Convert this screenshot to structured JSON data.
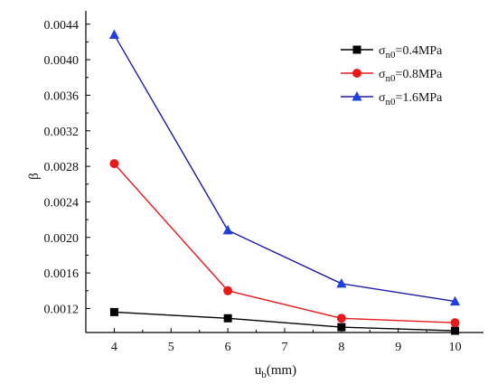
{
  "chart_data": {
    "type": "line",
    "xlabel": "u_b(mm)",
    "ylabel": "β",
    "xlim": [
      3.5,
      10.5
    ],
    "ylim": [
      0.00093,
      0.00455
    ],
    "xticks": [
      4,
      5,
      6,
      7,
      8,
      9,
      10
    ],
    "xtick_labels": [
      "4",
      "5",
      "6",
      "7",
      "8",
      "9",
      "10"
    ],
    "yticks": [
      0.0012,
      0.0016,
      0.002,
      0.0024,
      0.0028,
      0.0032,
      0.0036,
      0.004,
      0.0044
    ],
    "ytick_labels": [
      "0.0012",
      "0.0016",
      "0.0020",
      "0.0024",
      "0.0028",
      "0.0032",
      "0.0036",
      "0.0040",
      "0.0044"
    ],
    "grid": false,
    "legend_position": "top-right",
    "x": [
      4,
      6,
      8,
      10
    ],
    "series": [
      {
        "name": "σn0=0.4MPa",
        "label_main": "σ",
        "label_sub": "n0",
        "label_rest": "=0.4MPa",
        "color": "#000000",
        "marker": "square",
        "values": [
          0.00116,
          0.00109,
          0.00099,
          0.00095
        ]
      },
      {
        "name": "σn0=0.8MPa",
        "label_main": "σ",
        "label_sub": "n0",
        "label_rest": "=0.8MPa",
        "color": "#e8191b",
        "marker": "circle",
        "values": [
          0.00283,
          0.0014,
          0.00109,
          0.00104
        ]
      },
      {
        "name": "σn0=1.6MPa",
        "label_main": "σ",
        "label_sub": "n0",
        "label_rest": "=1.6MPa",
        "color": "#1a1aa8",
        "marker_color": "#1f3fe0",
        "marker": "triangle",
        "values": [
          0.00428,
          0.00208,
          0.00148,
          0.00128
        ]
      }
    ]
  }
}
